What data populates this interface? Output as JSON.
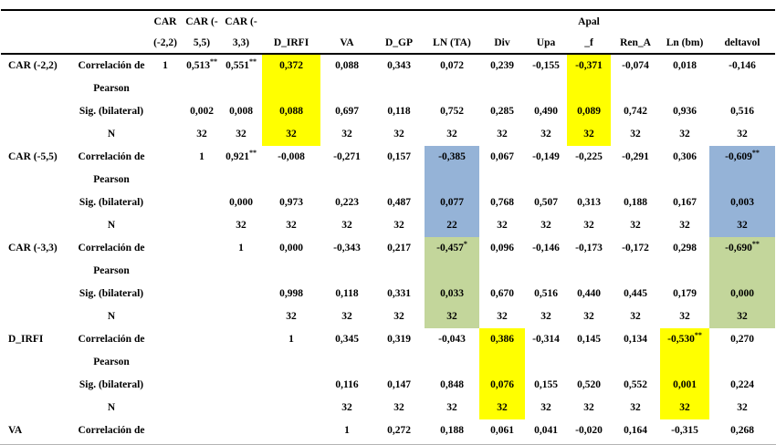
{
  "table": {
    "highlight_colors": {
      "yellow": "#ffff00",
      "blue": "#95b3d7",
      "green": "#c3d69b"
    },
    "header": {
      "columns": [
        {
          "line1": "CAR",
          "line2": "(-2,2)"
        },
        {
          "line1": "CAR (-",
          "line2": "5,5)"
        },
        {
          "line1": "CAR (-",
          "line2": "3,3)"
        },
        {
          "line1": "",
          "line2": "D_IRFI"
        },
        {
          "line1": "",
          "line2": "VA"
        },
        {
          "line1": "",
          "line2": "D_GP"
        },
        {
          "line1": "",
          "line2": "LN (TA)"
        },
        {
          "line1": "",
          "line2": "Div"
        },
        {
          "line1": "",
          "line2": "Upa"
        },
        {
          "line1": "Apal",
          "line2": "_f"
        },
        {
          "line1": "",
          "line2": "Ren_A"
        },
        {
          "line1": "",
          "line2": "Ln (bm)"
        },
        {
          "line1": "",
          "line2": "deltavol"
        }
      ]
    },
    "groups": [
      {
        "variable": "CAR (-2,2)",
        "rows": [
          {
            "label_lines": [
              "Correlación de",
              "Pearson"
            ],
            "values": [
              "1",
              "0,513**",
              "0,551**",
              "0,372",
              "0,088",
              "0,343",
              "0,072",
              "0,239",
              "-0,155",
              "-0,371",
              "-0,074",
              "0,018",
              "-0,146"
            ],
            "highlights": {
              "3": "yellow",
              "9": "yellow"
            }
          },
          {
            "label_lines": [
              "Sig. (bilateral)"
            ],
            "values": [
              "",
              "0,002",
              "0,008",
              "0,088",
              "0,697",
              "0,118",
              "0,752",
              "0,285",
              "0,490",
              "0,089",
              "0,742",
              "0,936",
              "0,516"
            ],
            "highlights": {
              "3": "yellow",
              "9": "yellow"
            }
          },
          {
            "label_lines": [
              "N"
            ],
            "values": [
              "",
              "32",
              "32",
              "32",
              "32",
              "32",
              "32",
              "32",
              "32",
              "32",
              "32",
              "32",
              "32"
            ],
            "highlights": {
              "3": "yellow",
              "9": "yellow"
            }
          }
        ]
      },
      {
        "variable": "CAR (-5,5)",
        "rows": [
          {
            "label_lines": [
              "Correlación de",
              "Pearson"
            ],
            "values": [
              "",
              "1",
              "0,921**",
              "-0,008",
              "-0,271",
              "0,157",
              "-0,385",
              "0,067",
              "-0,149",
              "-0,225",
              "-0,291",
              "0,306",
              "-0,609**"
            ],
            "highlights": {
              "6": "blue",
              "12": "blue"
            }
          },
          {
            "label_lines": [
              "Sig. (bilateral)"
            ],
            "values": [
              "",
              "",
              "0,000",
              "0,973",
              "0,223",
              "0,487",
              "0,077",
              "0,768",
              "0,507",
              "0,313",
              "0,188",
              "0,167",
              "0,003"
            ],
            "highlights": {
              "6": "blue",
              "12": "blue"
            }
          },
          {
            "label_lines": [
              "N"
            ],
            "values": [
              "",
              "",
              "32",
              "32",
              "32",
              "32",
              "22",
              "32",
              "32",
              "32",
              "32",
              "32",
              "32"
            ],
            "highlights": {
              "6": "blue",
              "12": "blue"
            }
          }
        ]
      },
      {
        "variable": "CAR (-3,3)",
        "rows": [
          {
            "label_lines": [
              "Correlación de",
              "Pearson"
            ],
            "values": [
              "",
              "",
              "1",
              "0,000",
              "-0,343",
              "0,217",
              "-0,457*",
              "0,096",
              "-0,146",
              "-0,173",
              "-0,172",
              "0,298",
              "-0,690**"
            ],
            "highlights": {
              "6": "green",
              "12": "green"
            }
          },
          {
            "label_lines": [
              "Sig. (bilateral)"
            ],
            "values": [
              "",
              "",
              "",
              "0,998",
              "0,118",
              "0,331",
              "0,033",
              "0,670",
              "0,516",
              "0,440",
              "0,445",
              "0,179",
              "0,000"
            ],
            "highlights": {
              "6": "green",
              "12": "green"
            }
          },
          {
            "label_lines": [
              "N"
            ],
            "values": [
              "",
              "",
              "",
              "32",
              "32",
              "32",
              "32",
              "32",
              "32",
              "32",
              "32",
              "32",
              "32"
            ],
            "highlights": {
              "6": "green",
              "12": "green"
            }
          }
        ]
      },
      {
        "variable": "D_IRFI",
        "rows": [
          {
            "label_lines": [
              "Correlación de",
              "Pearson"
            ],
            "values": [
              "",
              "",
              "",
              "1",
              "0,345",
              "0,319",
              "-0,043",
              "0,386",
              "-0,314",
              "0,145",
              "0,134",
              "-0,530**",
              "0,270"
            ],
            "highlights": {
              "7": "yellow",
              "11": "yellow"
            }
          },
          {
            "label_lines": [
              "Sig. (bilateral)"
            ],
            "values": [
              "",
              "",
              "",
              "",
              "0,116",
              "0,147",
              "0,848",
              "0,076",
              "0,155",
              "0,520",
              "0,552",
              "0,001",
              "0,224"
            ],
            "highlights": {
              "7": "yellow",
              "11": "yellow"
            }
          },
          {
            "label_lines": [
              "N"
            ],
            "values": [
              "",
              "",
              "",
              "",
              "32",
              "32",
              "32",
              "32",
              "32",
              "32",
              "32",
              "32",
              "32"
            ],
            "highlights": {
              "7": "yellow",
              "11": "yellow"
            }
          }
        ]
      },
      {
        "variable": "VA",
        "rows": [
          {
            "label_lines": [
              "Correlación de"
            ],
            "values": [
              "",
              "",
              "",
              "",
              "1",
              "0,272",
              "0,188",
              "0,061",
              "0,041",
              "-0,020",
              "0,164",
              "-0,315",
              "0,268"
            ],
            "highlights": {}
          }
        ]
      }
    ]
  }
}
